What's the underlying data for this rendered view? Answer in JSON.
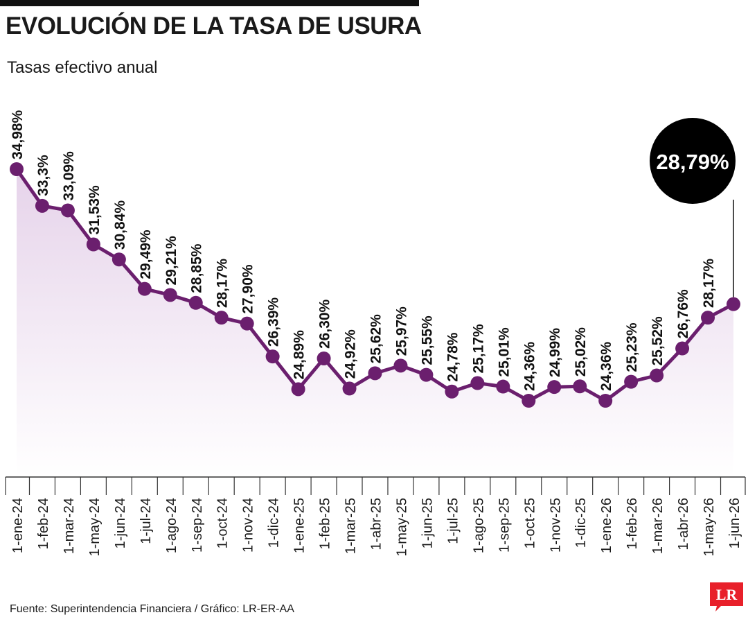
{
  "header": {
    "title": "EVOLUCIÓN DE LA TASA DE USURA",
    "subtitle": "Tasas efectivo anual"
  },
  "footer": {
    "source": "Fuente: Superintendencia Financiera / Gráfico: LR-ER-AA"
  },
  "logo": {
    "text": "LR",
    "color": "#e8202a"
  },
  "colors": {
    "line": "#6b1f6e",
    "area_top": "#e6d3ea",
    "area_bottom": "#ffffff",
    "bubble": "#000000",
    "badge_icon": "#d8bcdd"
  },
  "icons": {
    "badge": "percent-badge-icon"
  },
  "chart_data": {
    "type": "line",
    "title": "EVOLUCIÓN DE LA TASA DE USURA",
    "subtitle": "Tasas efectivo anual",
    "xlabel": "",
    "ylabel": "",
    "grid": false,
    "legend": "none",
    "categories": [
      "1-ene-24",
      "1-feb-24",
      "1-mar-24",
      "1-may-24",
      "1-jun-24",
      "1-jul-24",
      "1-ago-24",
      "1-sep-24",
      "1-oct-24",
      "1-nov-24",
      "1-dic-24",
      "1-ene-25",
      "1-feb-25",
      "1-mar-25",
      "1-abr-25",
      "1-may-25",
      "1-jun-25",
      "1-jul-25",
      "1-ago-25",
      "1-sep-25",
      "1-oct-25",
      "1-nov-25",
      "1-dic-25",
      "1-ene-26",
      "1-feb-26",
      "1-mar-26",
      "1-abr-26",
      "1-may-26",
      "1-jun-26"
    ],
    "values": [
      34.98,
      33.3,
      33.09,
      31.53,
      30.84,
      29.49,
      29.21,
      28.85,
      28.17,
      27.9,
      26.39,
      24.89,
      26.3,
      24.92,
      25.62,
      25.97,
      25.55,
      24.78,
      25.17,
      25.01,
      24.36,
      24.99,
      25.02,
      24.36,
      25.23,
      25.52,
      26.76,
      28.17,
      28.79
    ],
    "labels": [
      "34,98%",
      "33,3%",
      "33,09%",
      "31,53%",
      "30,84%",
      "29,49%",
      "29,21%",
      "28,85%",
      "28,17%",
      "27,90%",
      "26,39%",
      "24,89%",
      "26,30%",
      "24,92%",
      "25,62%",
      "25,97%",
      "25,55%",
      "24,78%",
      "25,17%",
      "25,01%",
      "24,36%",
      "24,99%",
      "25,02%",
      "24,36%",
      "25,23%",
      "25,52%",
      "26,76%",
      "28,17%",
      ""
    ],
    "highlight": {
      "index": 28,
      "label": "28,79%"
    }
  }
}
